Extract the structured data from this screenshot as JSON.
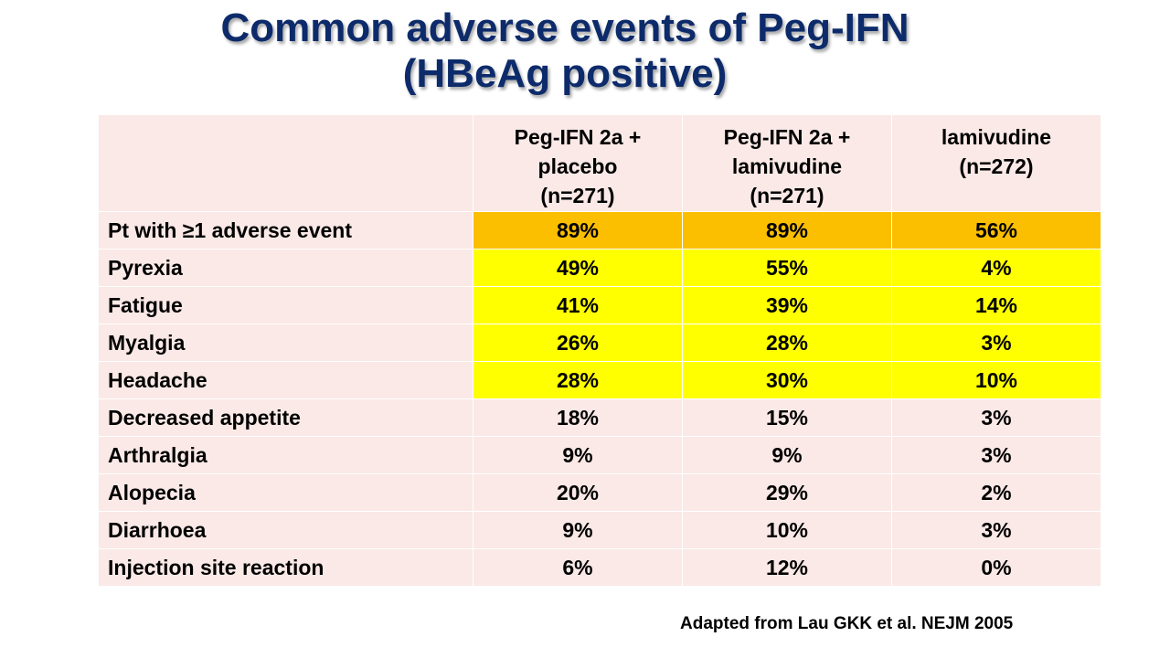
{
  "title": {
    "line1": "Common adverse events of Peg-IFN",
    "line2": "(HBeAg positive)"
  },
  "table": {
    "columns": [
      {
        "line1": "Peg-IFN 2a +",
        "line2": "placebo",
        "line3": "(n=271)"
      },
      {
        "line1": "Peg-IFN 2a +",
        "line2": "lamivudine",
        "line3": "(n=271)"
      },
      {
        "line1": "lamivudine",
        "line2": "(n=272)",
        "line3": ""
      }
    ],
    "rows": [
      {
        "label": "Pt with ≥1 adverse event",
        "values": [
          "89%",
          "89%",
          "56%"
        ],
        "highlight": "orange"
      },
      {
        "label": "Pyrexia",
        "values": [
          "49%",
          "55%",
          "4%"
        ],
        "highlight": "yellow"
      },
      {
        "label": "Fatigue",
        "values": [
          "41%",
          "39%",
          "14%"
        ],
        "highlight": "yellow"
      },
      {
        "label": "Myalgia",
        "values": [
          "26%",
          "28%",
          "3%"
        ],
        "highlight": "yellow"
      },
      {
        "label": "Headache",
        "values": [
          "28%",
          "30%",
          "10%"
        ],
        "highlight": "yellow"
      },
      {
        "label": "Decreased appetite",
        "values": [
          "18%",
          "15%",
          "3%"
        ],
        "highlight": "none"
      },
      {
        "label": "Arthralgia",
        "values": [
          "9%",
          "9%",
          "3%"
        ],
        "highlight": "none"
      },
      {
        "label": "Alopecia",
        "values": [
          "20%",
          "29%",
          "2%"
        ],
        "highlight": "none"
      },
      {
        "label": "Diarrhoea",
        "values": [
          "9%",
          "10%",
          "3%"
        ],
        "highlight": "none"
      },
      {
        "label": "Injection site reaction",
        "values": [
          "6%",
          "12%",
          "0%"
        ],
        "highlight": "none"
      }
    ]
  },
  "citation": "Adapted from Lau GKK et al. NEJM 2005",
  "colors": {
    "title": "#0d2b6b",
    "cell_background": "#fae9e6",
    "highlight_orange": "#fbbf00",
    "highlight_yellow": "#ffff00"
  }
}
